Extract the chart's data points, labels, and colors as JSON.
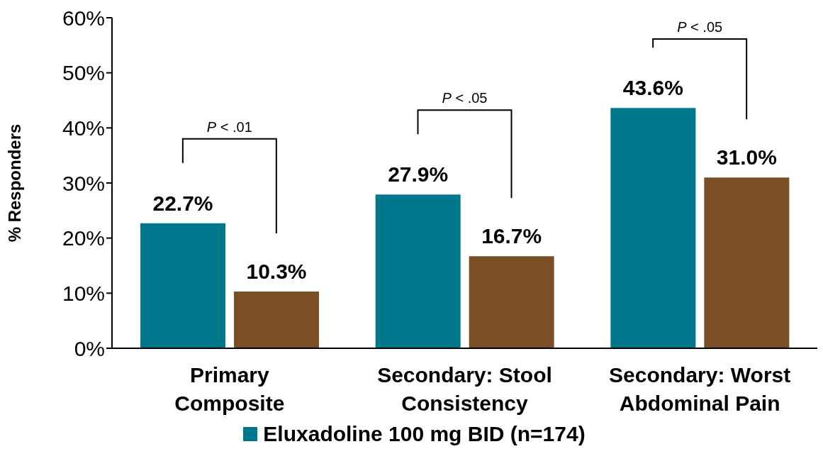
{
  "chart_data": {
    "type": "bar",
    "ylabel": "% Responders",
    "categories": [
      "Primary Composite",
      "Secondary: Stool Consistency",
      "Secondary: Worst Abdominal Pain"
    ],
    "series": [
      {
        "name": "Eluxadoline 100 mg BID (n=174)",
        "color": "#00788c",
        "values": [
          22.7,
          27.9,
          43.6
        ],
        "value_labels": [
          "22.7%",
          "27.9%",
          "43.6%"
        ]
      },
      {
        "color": "#7b4f26",
        "values": [
          10.3,
          16.7,
          31.0
        ],
        "value_labels": [
          "10.3%",
          "16.7%",
          "31.0%"
        ]
      }
    ],
    "ylim": [
      0,
      60
    ],
    "yticks": [
      {
        "value": 0,
        "label": "0%"
      },
      {
        "value": 10,
        "label": "10%"
      },
      {
        "value": 20,
        "label": "20%"
      },
      {
        "value": 30,
        "label": "30%"
      },
      {
        "value": 40,
        "label": "40%"
      },
      {
        "value": 50,
        "label": "50%"
      },
      {
        "value": 60,
        "label": "60%"
      }
    ],
    "annotations": [
      "P < .01",
      "P < .05",
      "P < .05"
    ],
    "grid": false,
    "legend": "bottom"
  }
}
